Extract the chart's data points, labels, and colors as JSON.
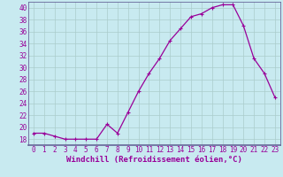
{
  "x": [
    0,
    1,
    2,
    3,
    4,
    5,
    6,
    7,
    8,
    9,
    10,
    11,
    12,
    13,
    14,
    15,
    16,
    17,
    18,
    19,
    20,
    21,
    22,
    23
  ],
  "y": [
    19,
    19,
    18.5,
    18,
    18,
    18,
    18,
    20.5,
    19,
    22.5,
    26,
    29,
    31.5,
    34.5,
    36.5,
    38.5,
    39,
    40,
    40.5,
    40.5,
    37,
    31.5,
    29,
    25
  ],
  "line_color": "#990099",
  "marker": "+",
  "marker_size": 3,
  "marker_lw": 0.8,
  "line_width": 0.9,
  "bg_color": "#c8eaf0",
  "grid_color": "#aacccc",
  "xlabel": "Windchill (Refroidissement éolien,°C)",
  "xlabel_color": "#990099",
  "xlabel_fontsize": 6.5,
  "tick_color": "#990099",
  "tick_fontsize": 5.5,
  "ylim": [
    17,
    41
  ],
  "yticks": [
    18,
    20,
    22,
    24,
    26,
    28,
    30,
    32,
    34,
    36,
    38,
    40
  ],
  "xlim": [
    -0.5,
    23.5
  ],
  "xticks": [
    0,
    1,
    2,
    3,
    4,
    5,
    6,
    7,
    8,
    9,
    10,
    11,
    12,
    13,
    14,
    15,
    16,
    17,
    18,
    19,
    20,
    21,
    22,
    23
  ],
  "spine_color": "#666699",
  "bottom_spine_color": "#666699"
}
